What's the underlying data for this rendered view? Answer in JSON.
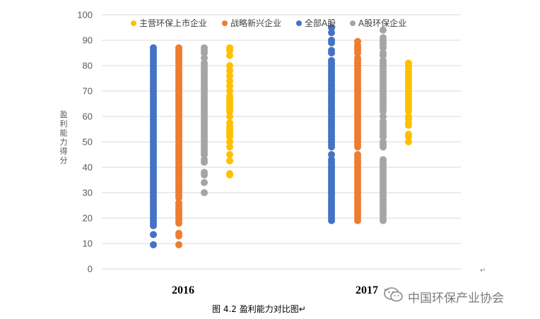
{
  "chart_data": {
    "type": "scatter",
    "ylabel": "盈利能力得分",
    "ylim": [
      0,
      100
    ],
    "yticks": [
      "0",
      "10",
      "20",
      "30",
      "40",
      "50",
      "60",
      "70",
      "80",
      "90",
      "100"
    ],
    "categories": [
      "2016",
      "2017"
    ],
    "grid": true,
    "legend_position": "top",
    "series": [
      {
        "name": "主营环保上市企业",
        "color": "#FFC000",
        "values": [
          [
            37,
            37.5,
            42.5,
            45,
            48,
            50,
            52,
            53,
            54,
            55,
            56,
            57.5,
            60,
            62,
            63,
            64,
            65,
            66,
            67,
            68,
            70,
            72,
            74,
            76,
            78,
            80,
            84,
            86,
            87
          ],
          [
            50,
            52,
            53,
            56.5,
            57.5,
            59,
            60,
            62,
            63,
            64,
            65,
            66,
            67,
            68,
            69,
            70,
            71,
            72,
            73,
            74,
            75,
            76,
            77,
            78,
            79,
            80,
            81
          ]
        ]
      },
      {
        "name": "战略新兴企业",
        "color": "#ED7D31",
        "values": [
          [
            9.5,
            13,
            14,
            18,
            19,
            20,
            21,
            22,
            23,
            24,
            25,
            26,
            28,
            29,
            30,
            31,
            32,
            33,
            34,
            35,
            36,
            37,
            38,
            39,
            40,
            41,
            42,
            43,
            44,
            45,
            46,
            47,
            48,
            49,
            50,
            51,
            52,
            53,
            54,
            55,
            56,
            57,
            58,
            59,
            60,
            61,
            62,
            63,
            64,
            65,
            66,
            67,
            68,
            69,
            70,
            71,
            72,
            73,
            74,
            75,
            76,
            77,
            78,
            79,
            80,
            81,
            82,
            83,
            84,
            85,
            86,
            87
          ],
          [
            19,
            20,
            21,
            22,
            23,
            24,
            25,
            26,
            27,
            28,
            29,
            30,
            31,
            32,
            33,
            34,
            35,
            36,
            37,
            38,
            39,
            40,
            41,
            42,
            43,
            44,
            45,
            48,
            49,
            50,
            51,
            52,
            53,
            54,
            55,
            56,
            57,
            58,
            59,
            60,
            61,
            62,
            63,
            64,
            65,
            66,
            67,
            68,
            69,
            70,
            71,
            72,
            73,
            74,
            75,
            76,
            77,
            78,
            79,
            80,
            81,
            82,
            83,
            85,
            86,
            87,
            88,
            89.5
          ]
        ]
      },
      {
        "name": "全部A股",
        "color": "#4472C4",
        "values": [
          [
            9.5,
            13.5,
            17,
            18,
            19,
            20,
            21,
            22,
            23,
            24,
            25,
            26,
            27,
            28,
            29,
            30,
            31,
            32,
            33,
            34,
            35,
            36,
            37,
            38,
            39,
            40,
            41,
            42,
            43,
            44,
            45,
            46,
            47,
            48,
            49,
            50,
            51,
            52,
            53,
            54,
            55,
            56,
            57,
            58,
            59,
            60,
            61,
            62,
            63,
            64,
            65,
            66,
            67,
            68,
            69,
            70,
            71,
            72,
            73,
            74,
            75,
            76,
            77,
            78,
            79,
            80,
            81,
            82,
            83,
            84,
            85,
            86,
            87
          ],
          [
            19,
            20,
            21,
            22,
            23,
            24,
            25,
            26,
            27,
            28,
            29,
            30,
            31,
            32,
            33,
            34,
            35,
            36,
            37,
            38,
            39,
            40,
            41,
            42,
            43,
            45,
            48,
            49,
            50,
            51,
            52,
            53,
            54,
            55,
            56,
            57,
            58,
            59,
            60,
            61,
            62,
            63,
            64,
            65,
            66,
            67,
            68,
            69,
            70,
            71,
            72,
            73,
            74,
            75,
            76,
            77,
            78,
            79,
            80,
            81,
            82,
            85,
            86,
            89,
            90,
            93,
            95
          ]
        ]
      },
      {
        "name": "A股环保企业",
        "color": "#A5A5A5",
        "values": [
          [
            30,
            34,
            37,
            38,
            42,
            43,
            45,
            46,
            47,
            48,
            49,
            50,
            51,
            52,
            53,
            54,
            55,
            56,
            57,
            58,
            59,
            60,
            61,
            62,
            63,
            64,
            65,
            66,
            67,
            68,
            69,
            70,
            71,
            72,
            73,
            74,
            75,
            76,
            77,
            78,
            79,
            80,
            81,
            83,
            85,
            86,
            87
          ],
          [
            19,
            20,
            21,
            22,
            23,
            24,
            25,
            26,
            27,
            28,
            29,
            30,
            31,
            32,
            33,
            34,
            35,
            36,
            37,
            38,
            39,
            40,
            41,
            42,
            43,
            48,
            49,
            50,
            52,
            53,
            54,
            55,
            56,
            57,
            58,
            60,
            62,
            63,
            64,
            65,
            66,
            67,
            68,
            69,
            70,
            71,
            72,
            73,
            74,
            75,
            76,
            77,
            78,
            79,
            80,
            81,
            82,
            84,
            85,
            87,
            88,
            89,
            90,
            91,
            94
          ]
        ]
      }
    ]
  },
  "caption": "图 4.2  盈利能力对比图↵",
  "return_mark": "↵",
  "watermark": {
    "icon": "wechat-icon",
    "text": "中国环保产业协会"
  }
}
